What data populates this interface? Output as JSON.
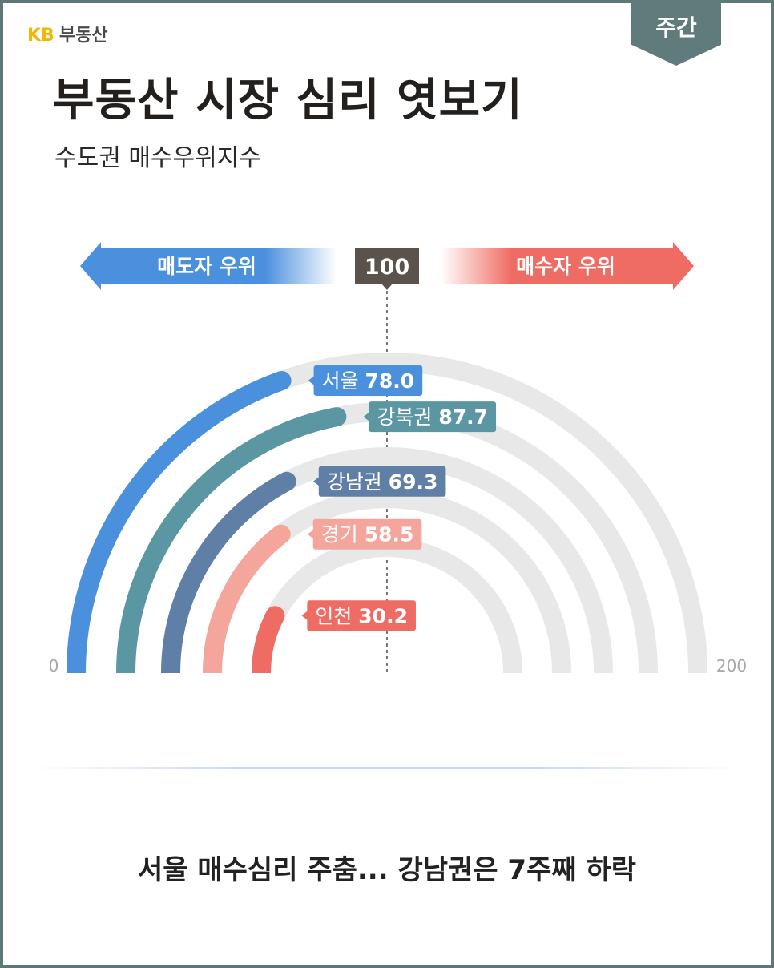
{
  "brand": {
    "kb": "KB",
    "name": "부동산"
  },
  "badge": {
    "label": "주간"
  },
  "header": {
    "title": "부동산 시장 심리 엿보기",
    "subtitle": "수도권 매수우위지수"
  },
  "colors": {
    "seller_arrow": "#4a90dd",
    "buyer_arrow": "#ef6c64",
    "center_badge": "#5a524b",
    "track": "#e8e8e8"
  },
  "chart_data": {
    "type": "radial-bar",
    "range": [
      0,
      200
    ],
    "min_label": "0",
    "max_label": "200",
    "center_value": "100",
    "left_label": "매도자 우위",
    "right_label": "매수자 우위",
    "series": [
      {
        "name": "서울",
        "value": 78.0,
        "value_label": "78.0",
        "color": "#4a90dd"
      },
      {
        "name": "강북권",
        "value": 87.7,
        "value_label": "87.7",
        "color": "#5b97a3"
      },
      {
        "name": "강남권",
        "value": 69.3,
        "value_label": "69.3",
        "color": "#5f7fa6"
      },
      {
        "name": "경기",
        "value": 58.5,
        "value_label": "58.5",
        "color": "#f4a59c"
      },
      {
        "name": "인천",
        "value": 30.2,
        "value_label": "30.2",
        "color": "#ef6c64"
      }
    ]
  },
  "caption": "서울 매수심리 주춤... 강남권은 7주째 하락"
}
